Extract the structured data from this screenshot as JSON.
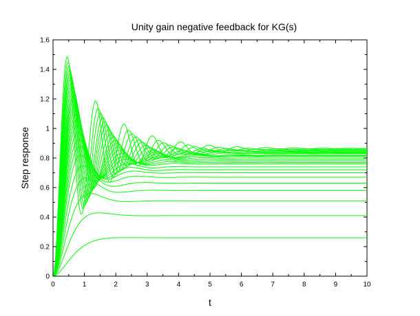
{
  "chart_data": {
    "type": "line",
    "title": "Unity gain negative feedback for KG(s)",
    "xlabel": "t",
    "ylabel": "Step response",
    "xlim": [
      0,
      10
    ],
    "ylim": [
      0,
      1.6
    ],
    "xticks": [
      "0",
      "1",
      "2",
      "3",
      "4",
      "5",
      "6",
      "7",
      "8",
      "9",
      "10"
    ],
    "yticks": [
      "0",
      "0.2",
      "0.4",
      "0.6",
      "0.8",
      "1",
      "1.2",
      "1.4",
      "1.6"
    ],
    "grid": false,
    "legend": "none",
    "line_color": "#00ff00",
    "series_model": "second-order step response y(t)=yf*(1 - e^(-zeta*wn*t)(cos(wd t) + zeta/sqrt(1-zeta^2) sin(wd t)))",
    "series": [
      {
        "final": 0.26,
        "zeta": 0.86,
        "wn": 2.6
      },
      {
        "final": 0.41,
        "zeta": 0.7,
        "wn": 3.0
      },
      {
        "final": 0.51,
        "zeta": 0.59,
        "wn": 3.3
      },
      {
        "final": 0.58,
        "zeta": 0.52,
        "wn": 3.5
      },
      {
        "final": 0.63,
        "zeta": 0.47,
        "wn": 3.7
      },
      {
        "final": 0.67,
        "zeta": 0.43,
        "wn": 3.9
      },
      {
        "final": 0.7,
        "zeta": 0.4,
        "wn": 4.0
      },
      {
        "final": 0.72,
        "zeta": 0.37,
        "wn": 4.1
      },
      {
        "final": 0.74,
        "zeta": 0.345,
        "wn": 4.2
      },
      {
        "final": 0.76,
        "zeta": 0.32,
        "wn": 4.3
      },
      {
        "final": 0.77,
        "zeta": 0.3,
        "wn": 4.4
      },
      {
        "final": 0.78,
        "zeta": 0.28,
        "wn": 4.5
      },
      {
        "final": 0.79,
        "zeta": 0.26,
        "wn": 4.6
      },
      {
        "final": 0.8,
        "zeta": 0.245,
        "wn": 4.7
      },
      {
        "final": 0.81,
        "zeta": 0.23,
        "wn": 4.8
      },
      {
        "final": 0.815,
        "zeta": 0.215,
        "wn": 4.9
      },
      {
        "final": 0.82,
        "zeta": 0.2,
        "wn": 5.0
      },
      {
        "final": 0.83,
        "zeta": 0.19,
        "wn": 5.2
      },
      {
        "final": 0.835,
        "zeta": 0.175,
        "wn": 5.4
      },
      {
        "final": 0.84,
        "zeta": 0.16,
        "wn": 5.6
      },
      {
        "final": 0.845,
        "zeta": 0.15,
        "wn": 5.8
      },
      {
        "final": 0.85,
        "zeta": 0.14,
        "wn": 6.0
      },
      {
        "final": 0.855,
        "zeta": 0.13,
        "wn": 6.3
      },
      {
        "final": 0.86,
        "zeta": 0.12,
        "wn": 6.6
      },
      {
        "final": 0.865,
        "zeta": 0.105,
        "wn": 7.0
      }
    ]
  }
}
